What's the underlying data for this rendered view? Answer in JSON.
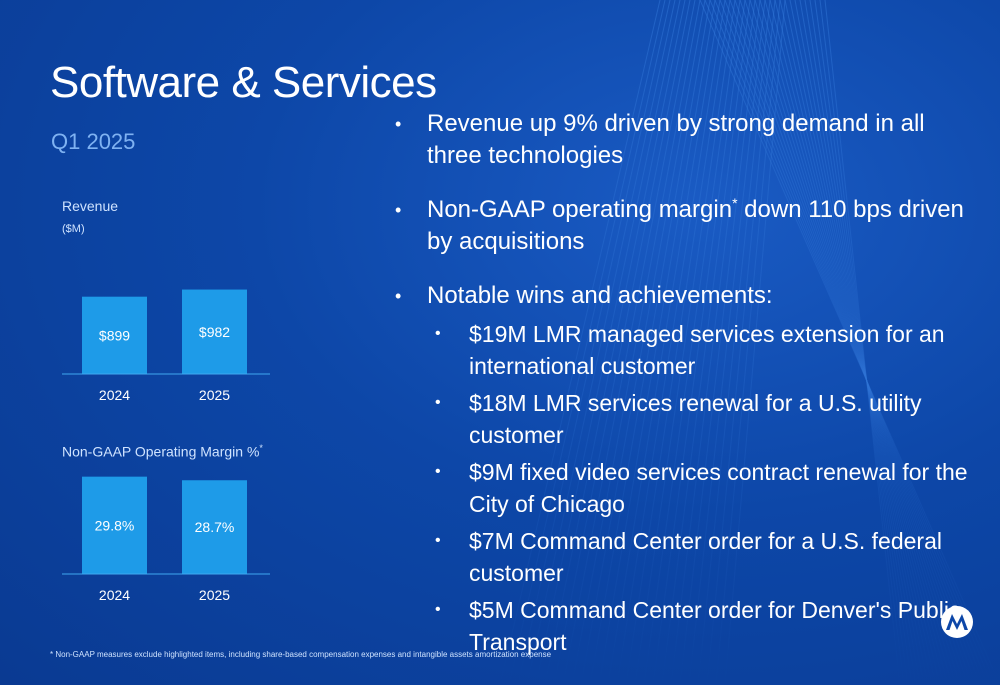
{
  "slide": {
    "title": "Software & Services",
    "subtitle": "Q1 2025",
    "footnote": "* Non-GAAP measures exclude highlighted items, including share-based compensation expenses and intangible assets amortization expense"
  },
  "bullets": [
    {
      "pre": "Revenue up 9% driven by strong demand in all three technologies",
      "sup": "",
      "post": ""
    },
    {
      "pre": "Non-GAAP operating margin",
      "sup": "*",
      "post": " down 110 bps driven by acquisitions"
    },
    {
      "pre": "Notable wins and achievements:",
      "sup": "",
      "post": ""
    }
  ],
  "sub_bullets": [
    "$19M LMR managed services extension for an international customer",
    "$18M LMR services renewal for a U.S. utility customer",
    "$9M fixed video services contract renewal for the City of Chicago",
    "$7M Command Center order for a U.S. federal customer",
    "$5M Command Center order for Denver's Public Transport"
  ],
  "colors": {
    "background": "#0d47a8",
    "bar": "#1e9be8",
    "text": "#ffffff",
    "accent_text": "#7fb2f2"
  },
  "icons": [
    "motorola-logo-icon"
  ],
  "chart_data": [
    {
      "type": "bar",
      "title": "Revenue",
      "unit": "($M)",
      "categories": [
        "2024",
        "2025"
      ],
      "values": [
        899,
        982
      ],
      "value_labels": [
        "$899",
        "$982"
      ],
      "ylim": [
        0,
        1000
      ],
      "grid": false
    },
    {
      "type": "bar",
      "title": "Non-GAAP Operating Margin %",
      "title_sup": "*",
      "categories": [
        "2024",
        "2025"
      ],
      "values": [
        29.8,
        28.7
      ],
      "value_labels": [
        "29.8%",
        "28.7%"
      ],
      "ylim": [
        0,
        30
      ],
      "grid": false
    }
  ]
}
